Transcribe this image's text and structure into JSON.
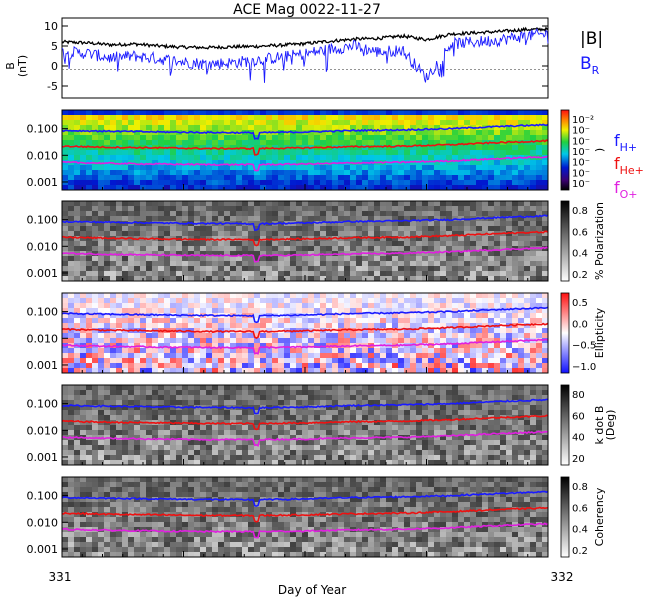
{
  "chart_data": [
    {
      "type": "line",
      "title": "ACE Mag 0022-11-27",
      "ylabel": "B (nT)",
      "ylim": [
        -8,
        12
      ],
      "yticks": [
        10,
        5,
        0,
        -5
      ],
      "series": [
        {
          "name": "|B|",
          "color": "#000000",
          "x": [
            331.0,
            331.05,
            331.1,
            331.15,
            331.2,
            331.25,
            331.3,
            331.35,
            331.4,
            331.45,
            331.5,
            331.55,
            331.6,
            331.65,
            331.7,
            331.75,
            331.8,
            331.85,
            331.9,
            331.95,
            332.0
          ],
          "values": [
            6.0,
            5.8,
            5.3,
            5.5,
            5.0,
            4.7,
            4.6,
            4.8,
            4.9,
            5.2,
            5.6,
            6.2,
            6.7,
            6.9,
            7.5,
            6.6,
            8.0,
            8.3,
            8.6,
            9.1,
            9.2
          ]
        },
        {
          "name": "B_R",
          "color": "#1a1aff",
          "x": [
            331.0,
            331.05,
            331.1,
            331.15,
            331.2,
            331.25,
            331.3,
            331.35,
            331.4,
            331.45,
            331.5,
            331.55,
            331.6,
            331.65,
            331.7,
            331.75,
            331.8,
            331.85,
            331.9,
            331.95,
            332.0
          ],
          "values": [
            3.5,
            3.2,
            2.0,
            2.5,
            1.8,
            1.0,
            0.5,
            0.8,
            1.5,
            2.2,
            3.0,
            4.2,
            5.0,
            3.5,
            4.0,
            -3.0,
            5.5,
            6.0,
            6.5,
            7.5,
            8.0
          ]
        }
      ],
      "legend": [
        "|B|",
        "B_R"
      ]
    },
    {
      "type": "heatmap",
      "panel": "power",
      "yscale": "log",
      "ylim": [
        0.0005,
        0.5
      ],
      "yticks": [
        "0.100",
        "0.010",
        "0.001"
      ],
      "colorbar_ticks": [
        "10⁻²",
        "10⁻",
        "10⁻",
        "10⁻",
        "10⁻",
        "10⁻",
        "10⁻"
      ],
      "colorbar_label": ")",
      "legend": [
        "f_H+",
        "f_He+",
        "f_O+"
      ]
    },
    {
      "type": "heatmap",
      "panel": "polarization",
      "yscale": "log",
      "yticks": [
        "0.100",
        "0.010",
        "0.001"
      ],
      "colorbar_ticks": [
        "0.8",
        "0.6",
        "0.4",
        "0.2"
      ],
      "colorbar_label": "% Polarization"
    },
    {
      "type": "heatmap",
      "panel": "ellipticity",
      "yscale": "log",
      "yticks": [
        "0.100",
        "0.010",
        "0.001"
      ],
      "colorbar_ticks": [
        "0.5",
        "0.0",
        "−0.5",
        "−1.0"
      ],
      "colorbar_label": "Ellipticity"
    },
    {
      "type": "heatmap",
      "panel": "kdotb",
      "yscale": "log",
      "yticks": [
        "0.100",
        "0.010",
        "0.001"
      ],
      "colorbar_ticks": [
        "80",
        "60",
        "40",
        "20"
      ],
      "colorbar_label": "k dot B",
      "colorbar_label2": "(Deg)"
    },
    {
      "type": "heatmap",
      "panel": "coherency",
      "yscale": "log",
      "yticks": [
        "0.100",
        "0.010",
        "0.001"
      ],
      "colorbar_ticks": [
        "0.8",
        "0.6",
        "0.4",
        "0.2"
      ],
      "colorbar_label": "Coherency"
    }
  ],
  "shared": {
    "xlabel": "Day of Year",
    "xlim": [
      331,
      332
    ],
    "xticks": [
      "331",
      "332"
    ],
    "gyro_lines": [
      {
        "name": "f_H+",
        "color": "#1a1aff",
        "x": [
          331.0,
          331.1,
          331.2,
          331.3,
          331.4,
          331.5,
          331.6,
          331.7,
          331.8,
          331.9,
          332.0
        ],
        "values": [
          0.085,
          0.08,
          0.075,
          0.072,
          0.07,
          0.075,
          0.085,
          0.09,
          0.1,
          0.12,
          0.14
        ]
      },
      {
        "name": "f_He+",
        "color": "#ee1111",
        "x": [
          331.0,
          331.1,
          331.2,
          331.3,
          331.4,
          331.5,
          331.6,
          331.7,
          331.8,
          331.9,
          332.0
        ],
        "values": [
          0.022,
          0.02,
          0.019,
          0.018,
          0.018,
          0.019,
          0.021,
          0.022,
          0.025,
          0.03,
          0.035
        ]
      },
      {
        "name": "f_O+",
        "color": "#e020e0",
        "x": [
          331.0,
          331.1,
          331.2,
          331.3,
          331.4,
          331.5,
          331.6,
          331.7,
          331.8,
          331.9,
          332.0
        ],
        "values": [
          0.0055,
          0.005,
          0.0047,
          0.0045,
          0.0045,
          0.0047,
          0.0052,
          0.0055,
          0.0062,
          0.0075,
          0.0088
        ]
      }
    ]
  },
  "labels": {
    "title": "ACE Mag 0022-11-27",
    "xlabel": "Day of Year",
    "x_start": "331",
    "x_end": "332",
    "b_label": "B",
    "b_unit": "(nT)",
    "legend_b": "|B|",
    "legend_br_main": "B",
    "legend_br_sub": "R",
    "f_main": "f",
    "f_h_sub": "H+",
    "f_he_sub": "He+",
    "f_o_sub": "O+",
    "power_cb_label": ")",
    "pol_cb_label": "% Polarization",
    "ell_cb_label": "Ellipticity",
    "kdb_cb_label1": "k dot B",
    "kdb_cb_label2": "(Deg)",
    "coh_cb_label": "Coherency",
    "b_ticks": [
      "10",
      "5",
      "0",
      "-5"
    ],
    "freq_ticks": [
      "0.100",
      "0.010",
      "0.001"
    ],
    "power_cb_ticks": [
      "10⁻²",
      "10⁻",
      "10⁻",
      "10⁻",
      "10⁻",
      "10⁻",
      "10⁻"
    ],
    "pol_cb_ticks": [
      "0.8",
      "0.6",
      "0.4",
      "0.2"
    ],
    "ell_cb_ticks": [
      "0.5",
      "0.0",
      "−0.5",
      "−1.0"
    ],
    "kdb_cb_ticks": [
      "80",
      "60",
      "40",
      "20"
    ],
    "coh_cb_ticks": [
      "0.8",
      "0.6",
      "0.4",
      "0.2"
    ]
  },
  "colors": {
    "b_total": "#000000",
    "b_r": "#1a1aff",
    "f_h": "#1a1aff",
    "f_he": "#ee1111",
    "f_o": "#e020e0"
  }
}
